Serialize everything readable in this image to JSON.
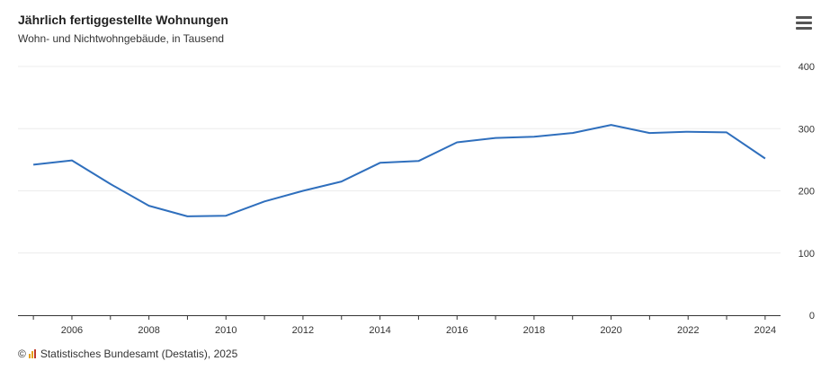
{
  "header": {
    "title": "Jährlich fertiggestellte Wohnungen",
    "subtitle": "Wohn- und Nichtwohngebäude, in Tausend",
    "menu_icon": "hamburger-menu-icon"
  },
  "footer": {
    "copyright_symbol": "©",
    "source": "Statistisches Bundesamt (Destatis), 2025",
    "logo_colors": [
      "#e5a01b",
      "#e5a01b",
      "#c0392b"
    ]
  },
  "chart_data": {
    "type": "line",
    "x": [
      2005,
      2006,
      2007,
      2008,
      2009,
      2010,
      2011,
      2012,
      2013,
      2014,
      2015,
      2016,
      2017,
      2018,
      2019,
      2020,
      2021,
      2022,
      2023,
      2024
    ],
    "series": [
      {
        "values": [
          242,
          249,
          211,
          176,
          159,
          160,
          183,
          200,
          215,
          245,
          248,
          278,
          285,
          287,
          293,
          306,
          293,
          295,
          294,
          252
        ],
        "color": "#2f6fbd"
      }
    ],
    "title": "Jährlich fertiggestellte Wohnungen",
    "subtitle": "Wohn- und Nichtwohngebäude, in Tausend",
    "xlabel": "",
    "ylabel": "",
    "xlim": [
      2004.6,
      2024.4
    ],
    "ylim": [
      0,
      400
    ],
    "x_ticks": [
      2006,
      2008,
      2010,
      2012,
      2014,
      2016,
      2018,
      2020,
      2022,
      2024
    ],
    "y_ticks": [
      0,
      100,
      200,
      300,
      400
    ],
    "y_axis_side": "right",
    "grid": true,
    "legend": "none"
  }
}
